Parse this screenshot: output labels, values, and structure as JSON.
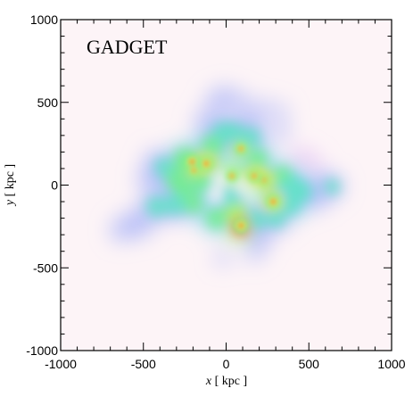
{
  "chart_data": {
    "type": "heatmap",
    "title": "GADGET",
    "xlabel_var": "x",
    "xlabel_unit": "[ kpc ]",
    "ylabel_var": "y",
    "ylabel_unit": "[ kpc ]",
    "xlim": [
      -1000,
      1000
    ],
    "ylim": [
      -1000,
      1000
    ],
    "xticks": [
      -1000,
      -500,
      0,
      500,
      1000
    ],
    "yticks": [
      -1000,
      -500,
      0,
      500,
      1000
    ],
    "grid": false,
    "background_color": "#fdf4f7",
    "colormap": [
      "#fbe3f0",
      "#d9b3f3",
      "#a9b4f7",
      "#7fd0ee",
      "#5fe3c6",
      "#73ee8c",
      "#b6f25a",
      "#f3e640",
      "#f8872a",
      "#e5182a"
    ],
    "density_blobs": [
      {
        "x": -205,
        "y": 140,
        "r": 70,
        "amp": 0.95
      },
      {
        "x": -115,
        "y": 130,
        "r": 70,
        "amp": 0.9
      },
      {
        "x": -190,
        "y": 90,
        "r": 55,
        "amp": 0.8
      },
      {
        "x": 35,
        "y": 55,
        "r": 55,
        "amp": 0.75
      },
      {
        "x": 90,
        "y": 220,
        "r": 55,
        "amp": 0.75
      },
      {
        "x": 175,
        "y": 55,
        "r": 70,
        "amp": 0.85
      },
      {
        "x": 235,
        "y": 30,
        "r": 60,
        "amp": 0.8
      },
      {
        "x": 285,
        "y": -100,
        "r": 65,
        "amp": 0.85
      },
      {
        "x": 90,
        "y": -245,
        "r": 75,
        "amp": 1.0
      },
      {
        "x": 55,
        "y": -160,
        "r": 70,
        "amp": 0.6
      },
      {
        "x": 30,
        "y": -90,
        "r": 50,
        "amp": 0.35
      },
      {
        "x": 10,
        "y": -50,
        "r": 50,
        "amp": 0.3
      },
      {
        "x": -250,
        "y": 150,
        "r": 85,
        "amp": 0.5
      },
      {
        "x": -300,
        "y": 40,
        "r": 80,
        "amp": 0.45
      },
      {
        "x": -260,
        "y": -20,
        "r": 70,
        "amp": 0.4
      },
      {
        "x": -150,
        "y": 20,
        "r": 75,
        "amp": 0.45
      },
      {
        "x": -80,
        "y": 240,
        "r": 80,
        "amp": 0.42
      },
      {
        "x": -20,
        "y": 320,
        "r": 75,
        "amp": 0.3
      },
      {
        "x": 50,
        "y": 320,
        "r": 70,
        "amp": 0.3
      },
      {
        "x": 150,
        "y": 290,
        "r": 70,
        "amp": 0.3
      },
      {
        "x": 190,
        "y": 160,
        "r": 70,
        "amp": 0.4
      },
      {
        "x": 340,
        "y": 55,
        "r": 70,
        "amp": 0.42
      },
      {
        "x": 400,
        "y": 0,
        "r": 70,
        "amp": 0.36
      },
      {
        "x": 460,
        "y": -40,
        "r": 70,
        "amp": 0.34
      },
      {
        "x": 390,
        "y": -120,
        "r": 70,
        "amp": 0.34
      },
      {
        "x": 540,
        "y": -60,
        "r": 70,
        "amp": 0.26
      },
      {
        "x": 600,
        "y": 0,
        "r": 60,
        "amp": 0.24
      },
      {
        "x": 640,
        "y": -10,
        "r": 55,
        "amp": 0.3
      },
      {
        "x": 300,
        "y": -200,
        "r": 70,
        "amp": 0.3
      },
      {
        "x": 180,
        "y": -210,
        "r": 70,
        "amp": 0.32
      },
      {
        "x": 200,
        "y": -330,
        "r": 55,
        "amp": 0.2
      },
      {
        "x": -60,
        "y": -200,
        "r": 75,
        "amp": 0.4
      },
      {
        "x": -200,
        "y": -110,
        "r": 75,
        "amp": 0.38
      },
      {
        "x": -310,
        "y": -120,
        "r": 75,
        "amp": 0.32
      },
      {
        "x": -420,
        "y": -130,
        "r": 75,
        "amp": 0.28
      },
      {
        "x": -530,
        "y": -230,
        "r": 70,
        "amp": 0.23
      },
      {
        "x": -630,
        "y": -270,
        "r": 55,
        "amp": 0.14
      },
      {
        "x": -380,
        "y": 110,
        "r": 65,
        "amp": 0.3
      },
      {
        "x": -460,
        "y": 40,
        "r": 60,
        "amp": 0.22
      },
      {
        "x": -130,
        "y": 380,
        "r": 50,
        "amp": 0.22
      },
      {
        "x": -60,
        "y": 500,
        "r": 50,
        "amp": 0.2
      },
      {
        "x": -10,
        "y": 540,
        "r": 45,
        "amp": 0.26
      },
      {
        "x": 90,
        "y": 500,
        "r": 45,
        "amp": 0.18
      },
      {
        "x": 160,
        "y": 400,
        "r": 45,
        "amp": 0.2
      },
      {
        "x": 230,
        "y": 470,
        "r": 35,
        "amp": 0.15
      },
      {
        "x": 330,
        "y": 440,
        "r": 35,
        "amp": 0.14
      },
      {
        "x": 330,
        "y": 320,
        "r": 40,
        "amp": 0.13
      },
      {
        "x": 450,
        "y": 170,
        "r": 40,
        "amp": 0.12
      },
      {
        "x": -20,
        "y": -440,
        "r": 35,
        "amp": 0.22
      },
      {
        "x": 170,
        "y": -420,
        "r": 35,
        "amp": 0.14
      },
      {
        "x": -440,
        "y": 160,
        "r": 40,
        "amp": 0.14
      },
      {
        "x": 530,
        "y": 130,
        "r": 35,
        "amp": 0.1
      }
    ],
    "density_voids": [
      {
        "x": -35,
        "y": 40,
        "r": 45
      },
      {
        "x": -60,
        "y": -55,
        "r": 45
      },
      {
        "x": 90,
        "y": 5,
        "r": 40
      },
      {
        "x": 160,
        "y": -40,
        "r": 30
      }
    ],
    "density_peaks": [
      {
        "x": -205,
        "y": 140,
        "r": 28
      },
      {
        "x": -120,
        "y": 130,
        "r": 28
      },
      {
        "x": -195,
        "y": 90,
        "r": 22
      },
      {
        "x": 35,
        "y": 55,
        "r": 22
      },
      {
        "x": 90,
        "y": 220,
        "r": 22
      },
      {
        "x": 170,
        "y": 55,
        "r": 24
      },
      {
        "x": 230,
        "y": 30,
        "r": 20
      },
      {
        "x": 285,
        "y": -100,
        "r": 28
      },
      {
        "x": 90,
        "y": -245,
        "r": 28
      }
    ]
  }
}
